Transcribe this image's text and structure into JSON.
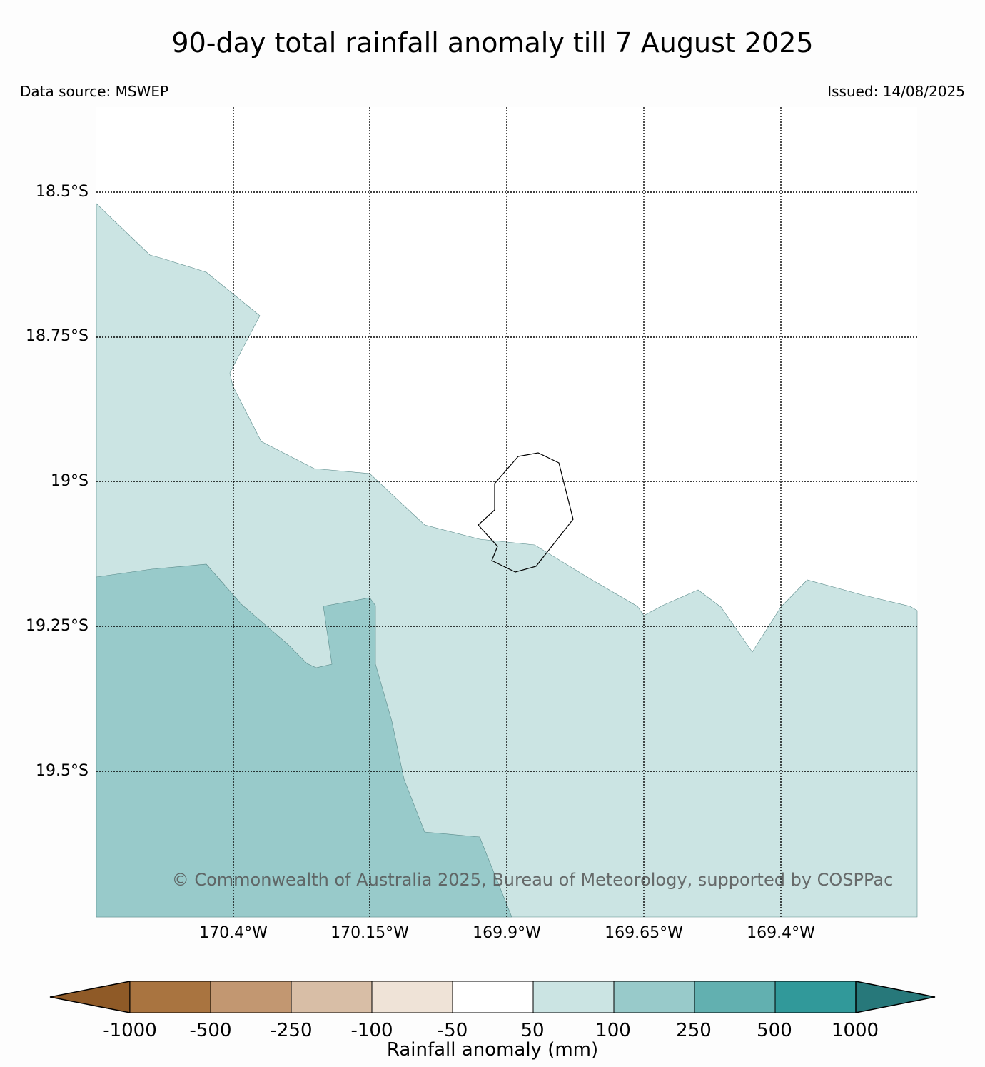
{
  "title": "90-day total rainfall anomaly till 7 August 2025",
  "data_source": "Data source: MSWEP",
  "issued": "Issued: 14/08/2025",
  "copyright": "© Commonwealth of Australia 2025, Bureau of Meteorology, supported by COSPPac",
  "lat_labels": [
    "18.5°S",
    "18.75°S",
    "19°S",
    "19.25°S",
    "19.5°S"
  ],
  "lon_labels": [
    "170.4°W",
    "170.15°W",
    "169.9°W",
    "169.65°W",
    "169.4°W"
  ],
  "colorbar": {
    "title": "Rainfall anomaly (mm)",
    "ticks": [
      "-1000",
      "-500",
      "-250",
      "-100",
      "-50",
      "50",
      "100",
      "250",
      "500",
      "1000"
    ],
    "colors": [
      "#8f5a27",
      "#a97440",
      "#c29771",
      "#d8bea6",
      "#efe3d7",
      "#ffffff",
      "#cbe4e3",
      "#98caca",
      "#62b0b0",
      "#31999a",
      "#27787a"
    ]
  },
  "legend_regions": {
    "band_50_100": "#cbe4e3",
    "band_100_250": "#98caca",
    "band_minus50_50": "#ffffff"
  }
}
